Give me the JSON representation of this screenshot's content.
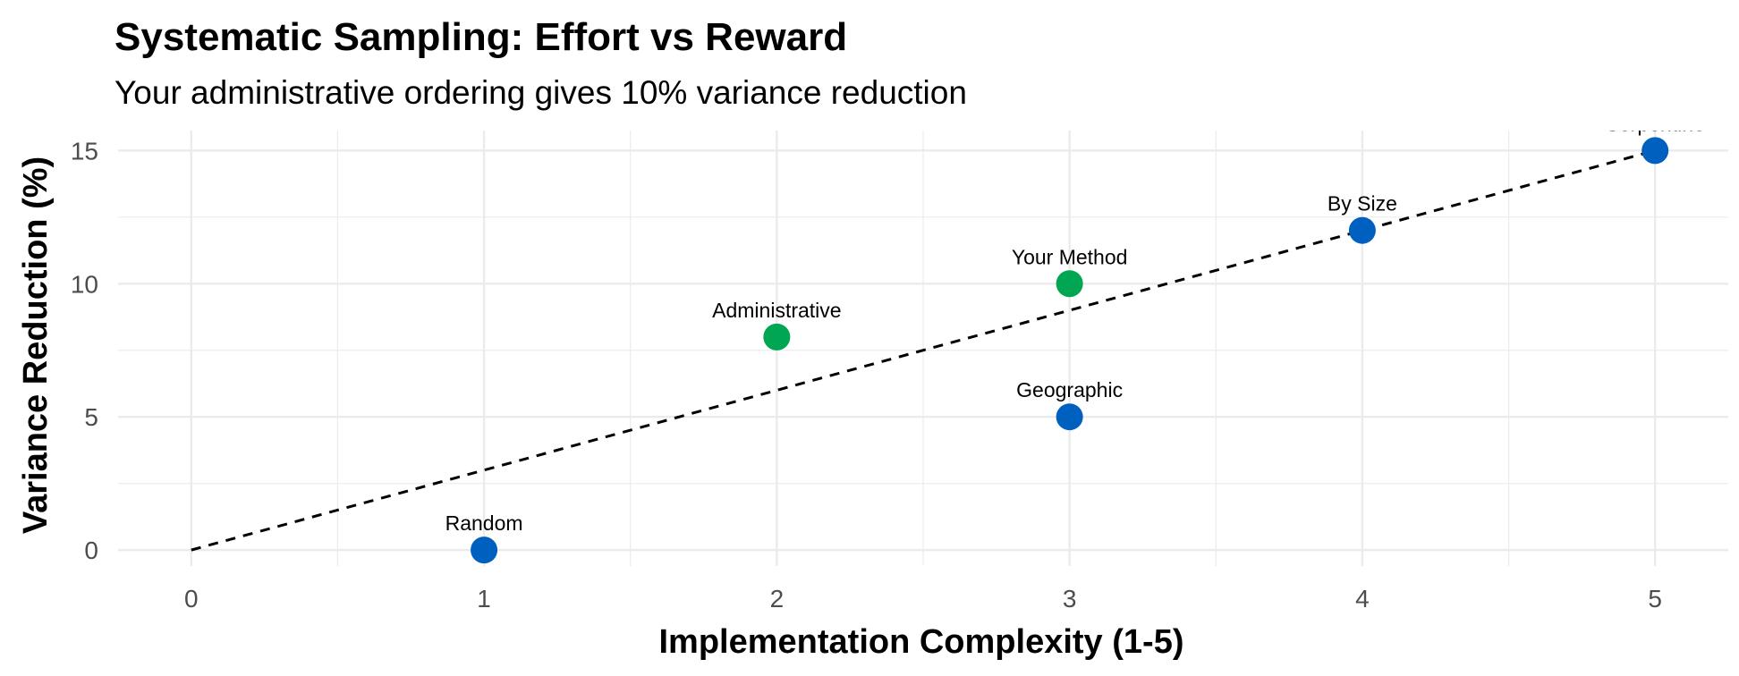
{
  "chart_data": {
    "type": "scatter",
    "title": "Systematic Sampling: Effort vs Reward",
    "subtitle": "Your administrative ordering gives 10% variance reduction",
    "xlabel": "Implementation Complexity (1-5)",
    "ylabel": "Variance Reduction (%)",
    "xlim": [
      -0.25,
      5.25
    ],
    "ylim": [
      -0.6,
      15.75
    ],
    "x_ticks": [
      0,
      1,
      2,
      3,
      4,
      5
    ],
    "y_ticks": [
      0,
      5,
      10,
      15
    ],
    "grid": true,
    "colors": {
      "highlight": "#00A651",
      "default": "#0060C0"
    },
    "trend_line": {
      "slope": 3,
      "intercept": 0
    },
    "points": [
      {
        "label": "Random",
        "x": 1,
        "y": 0,
        "group": "default"
      },
      {
        "label": "Administrative",
        "x": 2,
        "y": 8,
        "group": "highlight"
      },
      {
        "label": "Your Method",
        "x": 3,
        "y": 10,
        "group": "highlight"
      },
      {
        "label": "Geographic",
        "x": 3,
        "y": 5,
        "group": "default"
      },
      {
        "label": "By Size",
        "x": 4,
        "y": 12,
        "group": "default"
      },
      {
        "label": "Serpentine",
        "x": 5,
        "y": 15,
        "group": "default"
      }
    ]
  }
}
